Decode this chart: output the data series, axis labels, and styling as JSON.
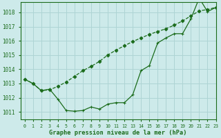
{
  "line_hourly_x": [
    0,
    1,
    2,
    3,
    4,
    5,
    6,
    7,
    8,
    9,
    10,
    11,
    12,
    13,
    14,
    15,
    16,
    17,
    18,
    19,
    20,
    21,
    22,
    23
  ],
  "line_hourly_y": [
    1013.3,
    1013.0,
    1012.5,
    1012.6,
    1011.9,
    1011.1,
    1011.05,
    1011.1,
    1011.35,
    1011.2,
    1011.55,
    1011.65,
    1011.65,
    1012.2,
    1013.9,
    1014.25,
    1015.85,
    1016.2,
    1016.5,
    1016.5,
    1017.55,
    1019.0,
    1018.05,
    1018.35
  ],
  "line_smooth_x": [
    0,
    1,
    2,
    3,
    4,
    5,
    6,
    7,
    8,
    9,
    10,
    11,
    12,
    13,
    14,
    15,
    16,
    17,
    18,
    19,
    20,
    21,
    22,
    23
  ],
  "line_smooth_y": [
    1013.3,
    1013.0,
    1012.5,
    1012.55,
    1012.8,
    1013.1,
    1013.5,
    1013.9,
    1014.2,
    1014.55,
    1015.0,
    1015.35,
    1015.65,
    1015.95,
    1016.2,
    1016.45,
    1016.65,
    1016.85,
    1017.1,
    1017.4,
    1017.75,
    1018.1,
    1018.2,
    1018.35
  ],
  "bg_color": "#cdeaea",
  "grid_color": "#aed4d4",
  "line_color": "#1a6b1a",
  "xlabel": "Graphe pression niveau de la mer (hPa)",
  "xlim": [
    -0.5,
    23
  ],
  "ylim": [
    1010.5,
    1018.7
  ],
  "yticks": [
    1011,
    1012,
    1013,
    1014,
    1015,
    1016,
    1017,
    1018
  ],
  "xticks": [
    0,
    1,
    2,
    3,
    4,
    5,
    6,
    7,
    8,
    9,
    10,
    11,
    12,
    13,
    14,
    15,
    16,
    17,
    18,
    19,
    20,
    21,
    22,
    23
  ]
}
